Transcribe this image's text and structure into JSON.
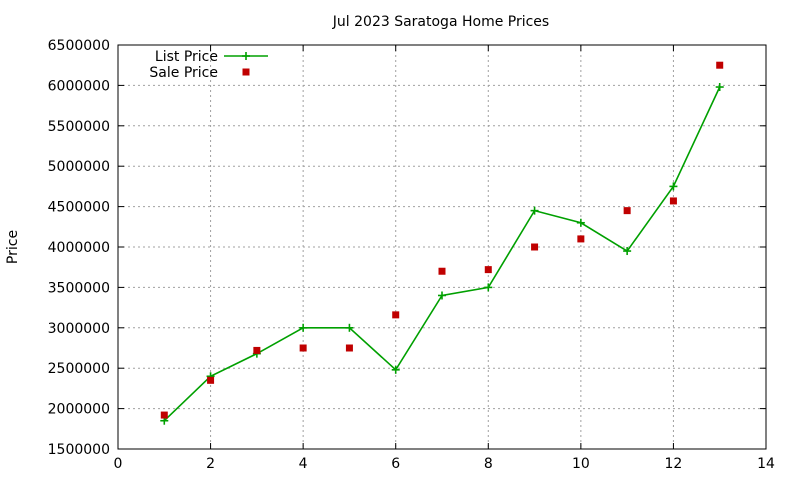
{
  "chart_data": {
    "type": "line",
    "title": "Jul 2023 Saratoga Home Prices",
    "xlabel": "",
    "ylabel": "Price",
    "xlim": [
      0,
      14
    ],
    "ylim": [
      1500000,
      6500000
    ],
    "x_ticks": [
      0,
      2,
      4,
      6,
      8,
      10,
      12,
      14
    ],
    "y_ticks": [
      1500000,
      2000000,
      2500000,
      3000000,
      3500000,
      4000000,
      4500000,
      5000000,
      5500000,
      6000000,
      6500000
    ],
    "grid": true,
    "legend_position": "top-left",
    "series": [
      {
        "name": "List Price",
        "style": "line-with-plus-markers",
        "color": "#00a000",
        "x": [
          1,
          2,
          3,
          4,
          5,
          6,
          7,
          8,
          9,
          10,
          11,
          12,
          13
        ],
        "values": [
          1850000,
          2400000,
          2680000,
          3000000,
          3000000,
          2480000,
          3400000,
          3500000,
          4450000,
          4300000,
          3950000,
          4750000,
          5980000
        ]
      },
      {
        "name": "Sale Price",
        "style": "square-markers",
        "color": "#c00000",
        "x": [
          1,
          2,
          3,
          4,
          5,
          6,
          7,
          8,
          9,
          10,
          11,
          12,
          13
        ],
        "values": [
          1920000,
          2350000,
          2720000,
          2750000,
          2750000,
          3160000,
          3700000,
          3720000,
          4000000,
          4100000,
          4450000,
          4570000,
          6250000
        ]
      }
    ]
  }
}
